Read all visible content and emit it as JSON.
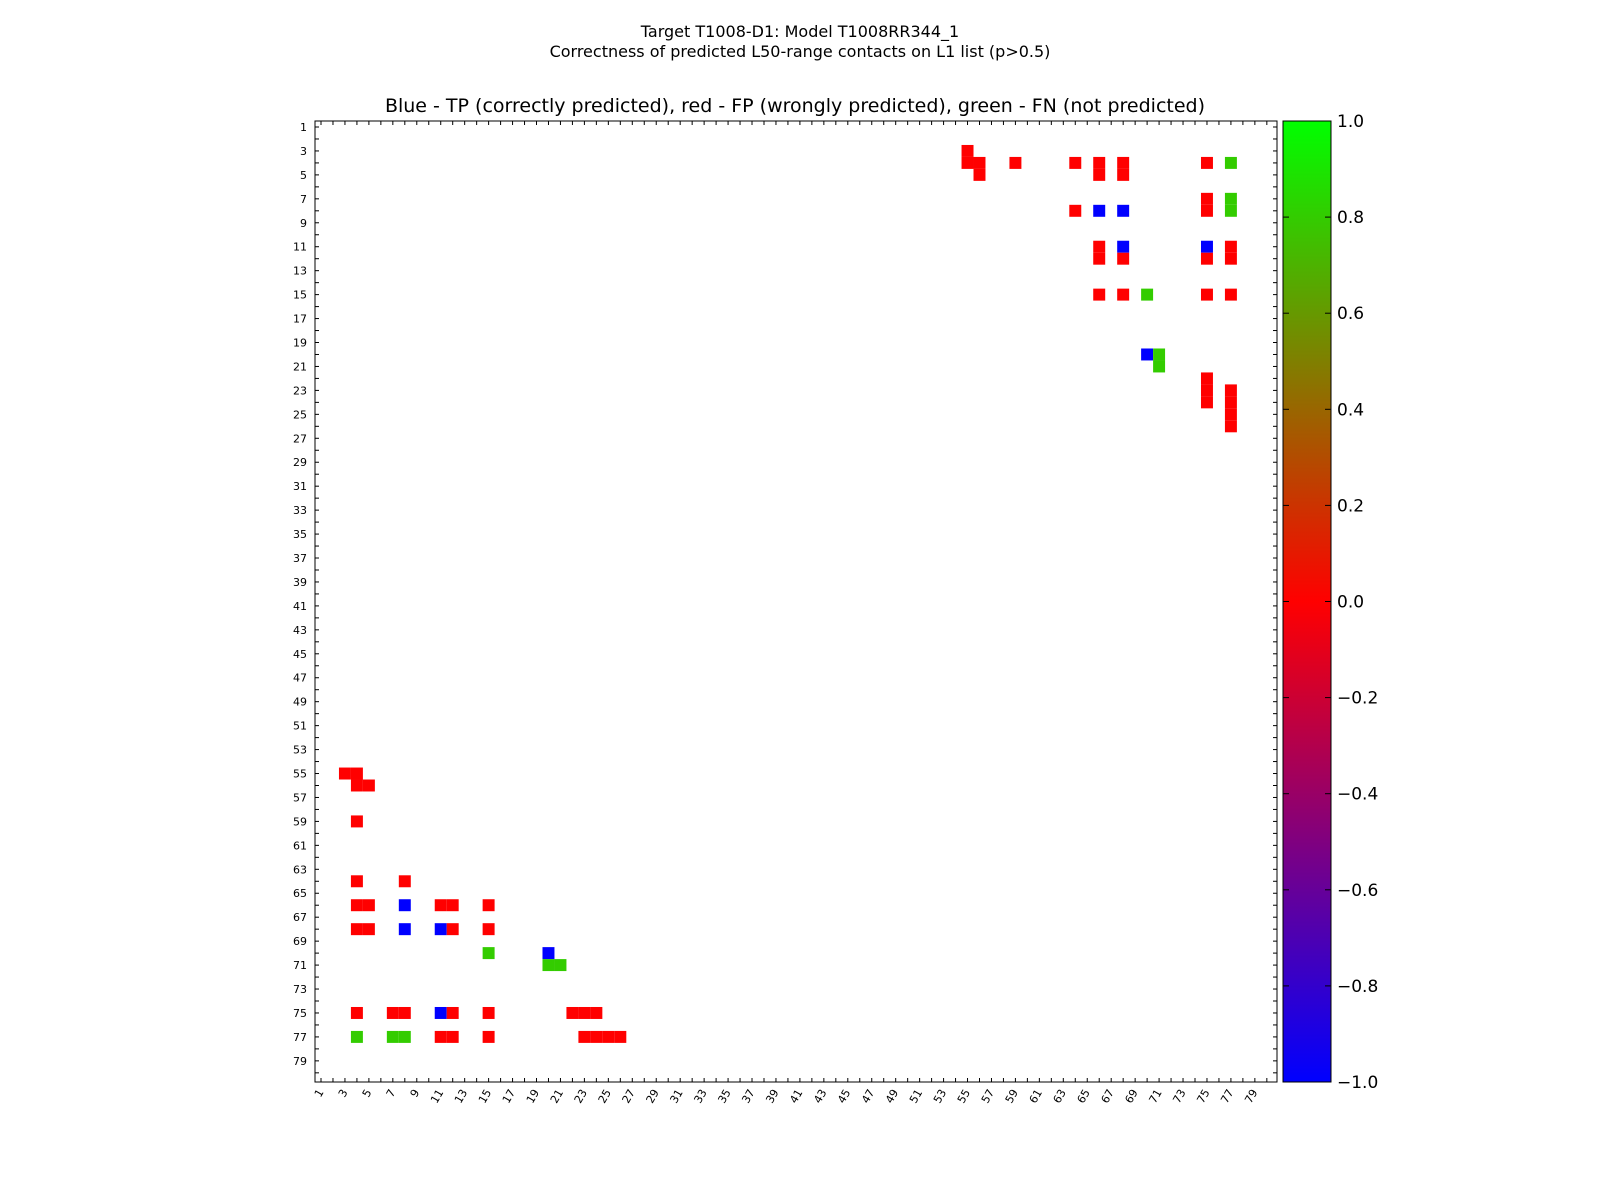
{
  "suptitle_line1": "Target T1008-D1: Model T1008RR344_1",
  "suptitle_line2": "Correctness of predicted L50-range contacts on L1 list (p>0.5)",
  "chart_data": {
    "type": "heatmap",
    "title": "Blue - TP (correctly predicted), red - FP (wrongly predicted), green - FN (not predicted)",
    "xlabel": "",
    "ylabel": "",
    "xlim": [
      1,
      80
    ],
    "ylim": [
      1,
      80
    ],
    "tick_labels": [
      "1",
      "3",
      "5",
      "7",
      "9",
      "11",
      "13",
      "15",
      "17",
      "19",
      "21",
      "23",
      "25",
      "27",
      "29",
      "31",
      "33",
      "35",
      "37",
      "39",
      "41",
      "43",
      "45",
      "47",
      "49",
      "51",
      "53",
      "55",
      "57",
      "59",
      "61",
      "63",
      "65",
      "67",
      "69",
      "71",
      "73",
      "75",
      "77",
      "79"
    ],
    "colorbar": {
      "min": -1.0,
      "max": 1.0,
      "tick_labels": [
        "1.0",
        "0.8",
        "0.6",
        "0.4",
        "0.2",
        "0.0",
        "−0.2",
        "−0.4",
        "−0.6",
        "−0.8",
        "−1.0"
      ],
      "stops": [
        {
          "value": -1.0,
          "color": "#0000ff"
        },
        {
          "value": 0.0,
          "color": "#ff0000"
        },
        {
          "value": 1.0,
          "color": "#00ff00"
        }
      ]
    },
    "legend": {
      "TP": "#0000ff",
      "FP": "#ff0000",
      "FN": "#33cc00"
    },
    "cells": [
      {
        "i": 3,
        "j": 55,
        "c": "FP"
      },
      {
        "i": 4,
        "j": 55,
        "c": "FP"
      },
      {
        "i": 4,
        "j": 56,
        "c": "FP"
      },
      {
        "i": 5,
        "j": 56,
        "c": "FP"
      },
      {
        "i": 4,
        "j": 59,
        "c": "FP"
      },
      {
        "i": 4,
        "j": 64,
        "c": "FP"
      },
      {
        "i": 4,
        "j": 66,
        "c": "FP"
      },
      {
        "i": 5,
        "j": 66,
        "c": "FP"
      },
      {
        "i": 4,
        "j": 68,
        "c": "FP"
      },
      {
        "i": 5,
        "j": 68,
        "c": "FP"
      },
      {
        "i": 4,
        "j": 75,
        "c": "FP"
      },
      {
        "i": 4,
        "j": 77,
        "c": "FN"
      },
      {
        "i": 8,
        "j": 64,
        "c": "FP"
      },
      {
        "i": 8,
        "j": 66,
        "c": "TP"
      },
      {
        "i": 8,
        "j": 68,
        "c": "TP"
      },
      {
        "i": 7,
        "j": 75,
        "c": "FP"
      },
      {
        "i": 8,
        "j": 75,
        "c": "FP"
      },
      {
        "i": 7,
        "j": 77,
        "c": "FN"
      },
      {
        "i": 8,
        "j": 77,
        "c": "FN"
      },
      {
        "i": 11,
        "j": 66,
        "c": "FP"
      },
      {
        "i": 12,
        "j": 66,
        "c": "FP"
      },
      {
        "i": 11,
        "j": 68,
        "c": "TP"
      },
      {
        "i": 12,
        "j": 68,
        "c": "FP"
      },
      {
        "i": 11,
        "j": 75,
        "c": "TP"
      },
      {
        "i": 12,
        "j": 75,
        "c": "FP"
      },
      {
        "i": 11,
        "j": 77,
        "c": "FP"
      },
      {
        "i": 12,
        "j": 77,
        "c": "FP"
      },
      {
        "i": 15,
        "j": 66,
        "c": "FP"
      },
      {
        "i": 15,
        "j": 68,
        "c": "FP"
      },
      {
        "i": 15,
        "j": 70,
        "c": "FN"
      },
      {
        "i": 15,
        "j": 75,
        "c": "FP"
      },
      {
        "i": 15,
        "j": 77,
        "c": "FP"
      },
      {
        "i": 20,
        "j": 70,
        "c": "TP"
      },
      {
        "i": 20,
        "j": 71,
        "c": "FN"
      },
      {
        "i": 21,
        "j": 71,
        "c": "FN"
      },
      {
        "i": 22,
        "j": 75,
        "c": "FP"
      },
      {
        "i": 23,
        "j": 75,
        "c": "FP"
      },
      {
        "i": 24,
        "j": 75,
        "c": "FP"
      },
      {
        "i": 23,
        "j": 77,
        "c": "FP"
      },
      {
        "i": 24,
        "j": 77,
        "c": "FP"
      },
      {
        "i": 25,
        "j": 77,
        "c": "FP"
      },
      {
        "i": 26,
        "j": 77,
        "c": "FP"
      }
    ]
  }
}
